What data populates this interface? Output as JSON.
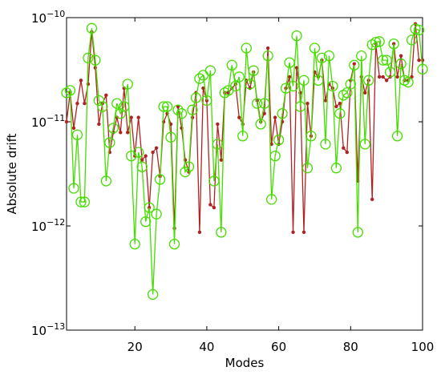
{
  "chart_data": {
    "type": "line",
    "xlabel": "Modes",
    "ylabel": "Absolute drift",
    "log_y": true,
    "xlim": [
      1,
      100
    ],
    "xticks": [
      20,
      40,
      60,
      80,
      100
    ],
    "ylim": [
      1e-13,
      1e-10
    ],
    "yticks": [
      {
        "value": 1e-13,
        "label": "10",
        "exponent": "−13"
      },
      {
        "value": 1e-12,
        "label": "10",
        "exponent": "−12"
      },
      {
        "value": 1e-11,
        "label": "10",
        "exponent": "−11"
      },
      {
        "value": 1e-10,
        "label": "10",
        "exponent": "−10"
      }
    ],
    "x": [
      1,
      2,
      3,
      4,
      5,
      6,
      7,
      8,
      9,
      10,
      11,
      12,
      13,
      14,
      15,
      16,
      17,
      18,
      19,
      20,
      21,
      22,
      23,
      24,
      25,
      26,
      27,
      28,
      29,
      30,
      31,
      32,
      33,
      34,
      35,
      36,
      37,
      38,
      39,
      40,
      41,
      42,
      43,
      44,
      45,
      46,
      47,
      48,
      49,
      50,
      51,
      52,
      53,
      54,
      55,
      56,
      57,
      58,
      59,
      60,
      61,
      62,
      63,
      64,
      65,
      66,
      67,
      68,
      69,
      70,
      71,
      72,
      73,
      74,
      75,
      76,
      77,
      78,
      79,
      80,
      81,
      82,
      83,
      84,
      85,
      86,
      87,
      88,
      89,
      90,
      91,
      92,
      93,
      94,
      95,
      96,
      97,
      98,
      99,
      100
    ],
    "series": [
      {
        "color": "#b22222",
        "marker": "dot",
        "values": [
          1e-11,
          1.9e-11,
          8.7e-12,
          1.5e-11,
          2.5e-11,
          1.5e-11,
          2.3e-11,
          7.3e-11,
          3.3e-11,
          9.5e-12,
          1.5e-11,
          1.8e-11,
          5.1e-12,
          7.9e-12,
          1.1e-11,
          7.9e-12,
          2.1e-11,
          7.9e-12,
          1.1e-11,
          4.7e-12,
          1.1e-11,
          4.3e-12,
          4.7e-12,
          1.5e-12,
          5.1e-12,
          5.6e-12,
          3e-12,
          1e-11,
          1.2e-11,
          9.5e-12,
          9.5e-13,
          1.4e-11,
          8.7e-12,
          4.3e-12,
          3.3e-12,
          1.1e-11,
          1.9e-11,
          8.7e-13,
          2.1e-11,
          1.6e-11,
          1.6e-12,
          1.5e-12,
          9.5e-12,
          4.3e-12,
          1.9e-11,
          1.9e-11,
          2.1e-11,
          2.3e-11,
          1.1e-11,
          9.5e-12,
          2.5e-11,
          2.1e-11,
          3e-11,
          1.6e-11,
          1e-11,
          1.2e-11,
          5.1e-11,
          6.1e-12,
          1.1e-11,
          6.1e-12,
          1e-11,
          2.1e-11,
          2.7e-11,
          8.7e-13,
          3.3e-11,
          1.9e-11,
          8.7e-13,
          1.5e-11,
          7.3e-12,
          3e-11,
          2.7e-11,
          3.9e-11,
          1.6e-11,
          2.3e-11,
          2.1e-11,
          1.4e-11,
          1.5e-11,
          5.6e-12,
          5.1e-12,
          2.5e-11,
          3.6e-11,
          2.7e-12,
          2.7e-11,
          1.9e-11,
          2.5e-11,
          1.8e-12,
          5.6e-11,
          2.7e-11,
          2.7e-11,
          2.5e-11,
          2.7e-11,
          5.6e-11,
          2.7e-11,
          4.3e-11,
          2.5e-11,
          2.5e-11,
          2.7e-11,
          8.7e-11,
          3.9e-11,
          3.9e-11
        ]
      },
      {
        "color": "#44dd00",
        "marker": "circle",
        "values": [
          1.9e-11,
          2e-11,
          2.3e-12,
          7.5e-12,
          1.7e-12,
          1.7e-12,
          4.1e-11,
          7.9e-11,
          3.9e-11,
          1.6e-11,
          1.4e-11,
          2.7e-12,
          6.3e-12,
          8.7e-12,
          1.5e-11,
          1.2e-11,
          1.4e-11,
          2.3e-11,
          4.7e-12,
          6.7e-13,
          5.1e-12,
          3.7e-12,
          1.1e-12,
          1.5e-12,
          2.2e-13,
          1.3e-12,
          2.8e-12,
          1.4e-11,
          1.4e-11,
          7.1e-12,
          6.7e-13,
          1.3e-11,
          1.2e-11,
          3.3e-12,
          3.7e-12,
          1.3e-11,
          1.7e-11,
          2.6e-11,
          2.8e-11,
          1.6e-11,
          3.1e-11,
          2.7e-12,
          6.1e-12,
          8.7e-13,
          1.9e-11,
          2e-11,
          3.5e-11,
          2.2e-11,
          2.7e-11,
          7.3e-12,
          5.1e-11,
          2.3e-11,
          3.1e-11,
          1.5e-11,
          9.5e-12,
          1.5e-11,
          4.3e-11,
          1.8e-12,
          4.7e-12,
          6.7e-12,
          1.2e-11,
          2.1e-11,
          3.7e-11,
          2.2e-11,
          6.7e-11,
          1.4e-11,
          2.5e-11,
          3.6e-12,
          7.3e-12,
          5.1e-11,
          2.5e-11,
          4.1e-11,
          6.1e-12,
          4.3e-11,
          2.2e-11,
          3.6e-12,
          1.2e-11,
          1.8e-11,
          1.9e-11,
          2.3e-11,
          3.5e-11,
          8.7e-13,
          4.3e-11,
          6.1e-12,
          2.5e-11,
          5.5e-11,
          5.8e-11,
          5.9e-11,
          3.9e-11,
          3.9e-11,
          3e-11,
          5.6e-11,
          7.3e-12,
          3.6e-11,
          2.5e-11,
          2.4e-11,
          6.1e-11,
          7.8e-11,
          7.6e-11,
          3.2e-11
        ]
      }
    ]
  }
}
